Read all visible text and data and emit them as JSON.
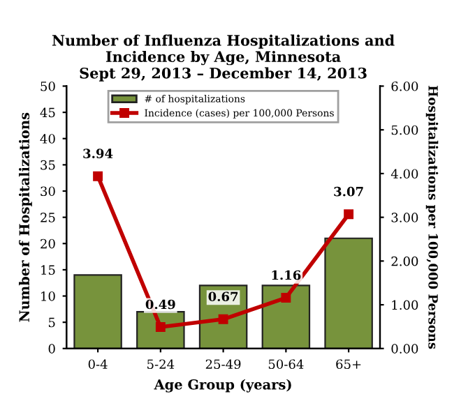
{
  "chart_data": {
    "type": "bar",
    "title": "Number of Influenza Hospitalizations and\nIncidence by Age, Minnesota\nSept 29, 2013 – December 14, 2013",
    "xlabel": "Age Group (years)",
    "ylabel": "Number of Hospitalizations",
    "y2label": "Hospitalizations per 100,000 Persons",
    "categories": [
      "0-4",
      "5-24",
      "25-49",
      "50-64",
      "65+"
    ],
    "series": [
      {
        "name": "# of hospitalizations",
        "color": "#77933c",
        "values": [
          14,
          7,
          12,
          12,
          21
        ]
      },
      {
        "name": "Incidence (cases) per 100,000 Persons",
        "type": "line",
        "axis": "y2",
        "color": "#c00000",
        "marker": "square",
        "values": [
          3.94,
          0.49,
          0.67,
          1.16,
          3.07
        ],
        "value_labels": [
          "3.94",
          "0.49",
          "0.67",
          "1.16",
          "3.07"
        ]
      }
    ],
    "ylim": [
      0,
      50
    ],
    "yticks": [
      0,
      5,
      10,
      15,
      20,
      25,
      30,
      35,
      40,
      45,
      50
    ],
    "y2lim": [
      0,
      6
    ],
    "y2ticks": [
      {
        "value": 0,
        "label": "0.00"
      },
      {
        "value": 1,
        "label": "1.00"
      },
      {
        "value": 2,
        "label": "2.00"
      },
      {
        "value": 3,
        "label": "3.00"
      },
      {
        "value": 4,
        "label": "4.00"
      },
      {
        "value": 5,
        "label": "5.00"
      },
      {
        "value": 6,
        "label": "6.00"
      }
    ],
    "grid": false,
    "legend": "top"
  }
}
